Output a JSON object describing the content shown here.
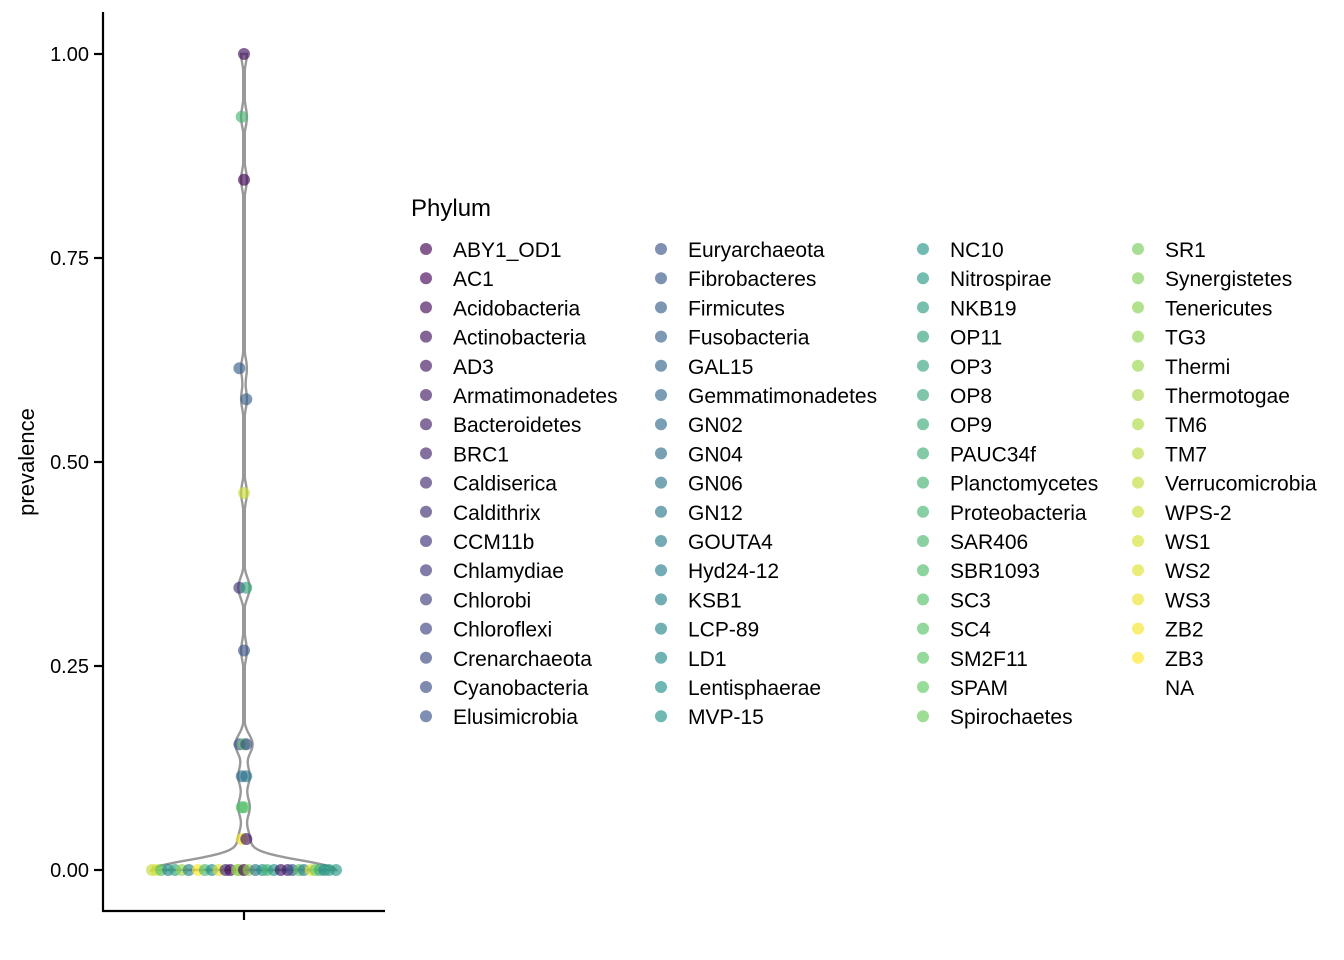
{
  "chart_data": {
    "type": "violin-jitter",
    "ylabel": "prevalence",
    "xlabel": "",
    "ylim": [
      -0.05,
      1.05
    ],
    "yticks": [
      0.0,
      0.25,
      0.5,
      0.75,
      1.0
    ],
    "ytick_labels": [
      "0.00",
      "0.25",
      "0.50",
      "0.75",
      "1.00"
    ],
    "grid": false,
    "legend": {
      "title": "Phylum",
      "placement": "right",
      "entries": [
        "ABY1_OD1",
        "AC1",
        "Acidobacteria",
        "Actinobacteria",
        "AD3",
        "Armatimonadetes",
        "Bacteroidetes",
        "BRC1",
        "Caldiserica",
        "Caldithrix",
        "CCM11b",
        "Chlamydiae",
        "Chlorobi",
        "Chloroflexi",
        "Crenarchaeota",
        "Cyanobacteria",
        "Elusimicrobia",
        "Euryarchaeota",
        "Fibrobacteres",
        "Firmicutes",
        "Fusobacteria",
        "GAL15",
        "Gemmatimonadetes",
        "GN02",
        "GN04",
        "GN06",
        "GN12",
        "GOUTA4",
        "Hyd24-12",
        "KSB1",
        "LCP-89",
        "LD1",
        "Lentisphaerae",
        "MVP-15",
        "NC10",
        "Nitrospirae",
        "NKB19",
        "OP11",
        "OP3",
        "OP8",
        "OP9",
        "PAUC34f",
        "Planctomycetes",
        "Proteobacteria",
        "SAR406",
        "SBR1093",
        "SC3",
        "SC4",
        "SM2F11",
        "SPAM",
        "Spirochaetes",
        "SR1",
        "Synergistetes",
        "Tenericutes",
        "TG3",
        "Thermi",
        "Thermotogae",
        "TM6",
        "TM7",
        "Verrucomicrobia",
        "WPS-2",
        "WS1",
        "WS2",
        "WS3",
        "ZB2",
        "ZB3",
        "NA"
      ]
    },
    "points": [
      {
        "y": 1.0,
        "phylum": "Actinobacteria",
        "jitter": 0.0
      },
      {
        "y": 0.923,
        "phylum": "Proteobacteria",
        "jitter": -0.01
      },
      {
        "y": 0.846,
        "phylum": "AC1",
        "jitter": 0.0
      },
      {
        "y": 0.615,
        "phylum": "Firmicutes",
        "jitter": -0.02
      },
      {
        "y": 0.577,
        "phylum": "Fusobacteria",
        "jitter": 0.01
      },
      {
        "y": 0.462,
        "phylum": "WPS-2",
        "jitter": 0.0
      },
      {
        "y": 0.346,
        "phylum": "Chlamydiae",
        "jitter": -0.02
      },
      {
        "y": 0.346,
        "phylum": "OP3",
        "jitter": 0.01
      },
      {
        "y": 0.269,
        "phylum": "Euryarchaeota",
        "jitter": 0.0
      },
      {
        "y": 0.154,
        "phylum": "Elusimicrobia",
        "jitter": -0.02
      },
      {
        "y": 0.154,
        "phylum": "SPAM",
        "jitter": 0.0
      },
      {
        "y": 0.154,
        "phylum": "Cyanobacteria",
        "jitter": 0.01
      },
      {
        "y": 0.115,
        "phylum": "GN02",
        "jitter": -0.01
      },
      {
        "y": 0.115,
        "phylum": "GN12",
        "jitter": 0.01
      },
      {
        "y": 0.077,
        "phylum": "SBR1093",
        "jitter": -0.01
      },
      {
        "y": 0.077,
        "phylum": "SC3",
        "jitter": 0.0
      },
      {
        "y": 0.038,
        "phylum": "ZB2",
        "jitter": -0.01
      },
      {
        "y": 0.038,
        "phylum": "AD3",
        "jitter": 0.01
      },
      {
        "y": 0.0,
        "phylum": "Verrucomicrobia",
        "jitter": -0.4
      },
      {
        "y": 0.0,
        "phylum": "WS1",
        "jitter": -0.38
      },
      {
        "y": 0.0,
        "phylum": "SC4",
        "jitter": -0.36
      },
      {
        "y": 0.0,
        "phylum": "LCP-89",
        "jitter": -0.33
      },
      {
        "y": 0.0,
        "phylum": "OP11",
        "jitter": -0.3
      },
      {
        "y": 0.0,
        "phylum": "Thermi",
        "jitter": -0.27
      },
      {
        "y": 0.0,
        "phylum": "KSB1",
        "jitter": -0.24
      },
      {
        "y": 0.0,
        "phylum": "ZB3",
        "jitter": -0.2
      },
      {
        "y": 0.0,
        "phylum": "SAR406",
        "jitter": -0.17
      },
      {
        "y": 0.0,
        "phylum": "Lentisphaerae",
        "jitter": -0.14
      },
      {
        "y": 0.0,
        "phylum": "WS2",
        "jitter": -0.11
      },
      {
        "y": 0.0,
        "phylum": "Caldiserica",
        "jitter": -0.08
      },
      {
        "y": 0.0,
        "phylum": "Acidobacteria",
        "jitter": -0.06
      },
      {
        "y": 0.0,
        "phylum": "Thermotogae",
        "jitter": -0.03
      },
      {
        "y": 0.0,
        "phylum": "Tenericutes",
        "jitter": -0.02
      },
      {
        "y": 0.0,
        "phylum": "ABY1_OD1",
        "jitter": 0.0
      },
      {
        "y": 0.0,
        "phylum": "TG3",
        "jitter": 0.02
      },
      {
        "y": 0.0,
        "phylum": "GN06",
        "jitter": 0.05
      },
      {
        "y": 0.0,
        "phylum": "MVP-15",
        "jitter": 0.08
      },
      {
        "y": 0.0,
        "phylum": "Planctomycetes",
        "jitter": 0.1
      },
      {
        "y": 0.0,
        "phylum": "NC10",
        "jitter": 0.13
      },
      {
        "y": 0.0,
        "phylum": "Armatimonadetes",
        "jitter": 0.16
      },
      {
        "y": 0.0,
        "phylum": "BRC1",
        "jitter": 0.19
      },
      {
        "y": 0.0,
        "phylum": "Fibrobacteres",
        "jitter": 0.21
      },
      {
        "y": 0.0,
        "phylum": "SM2F11",
        "jitter": 0.24
      },
      {
        "y": 0.0,
        "phylum": "Hyd24-12",
        "jitter": 0.26
      },
      {
        "y": 0.0,
        "phylum": "WS3",
        "jitter": 0.29
      },
      {
        "y": 0.0,
        "phylum": "Spirochaetes",
        "jitter": 0.31
      },
      {
        "y": 0.0,
        "phylum": "OP9",
        "jitter": 0.33
      },
      {
        "y": 0.0,
        "phylum": "LD1",
        "jitter": 0.35
      },
      {
        "y": 0.0,
        "phylum": "NKB19",
        "jitter": 0.37
      },
      {
        "y": 0.0,
        "phylum": "Nitrospirae",
        "jitter": 0.4
      }
    ]
  }
}
